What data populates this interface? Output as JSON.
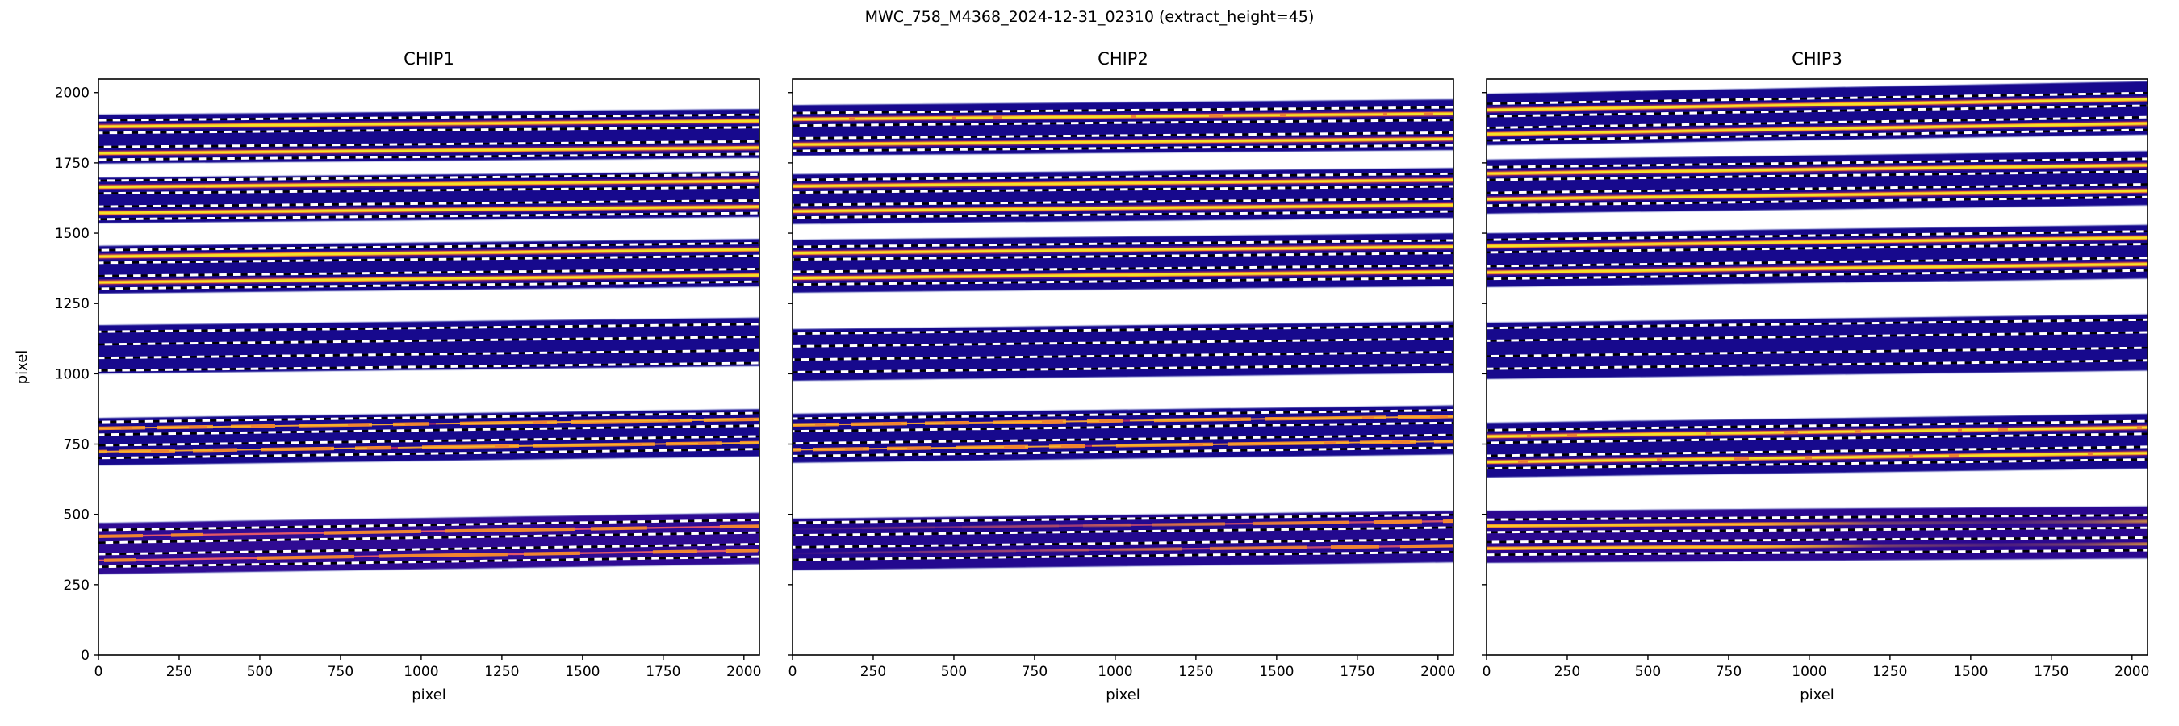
{
  "chart_data": {
    "type": "heatmap",
    "title": "MWC_758_M4368_2024-12-31_02310  (extract_height=45)",
    "extract_height": 45,
    "extraction_half_height": 22.5,
    "xlim": [
      0,
      2048
    ],
    "ylim": [
      0,
      2048
    ],
    "xticks": [
      0,
      250,
      500,
      750,
      1000,
      1250,
      1500,
      1750,
      2000
    ],
    "yticks": [
      0,
      250,
      500,
      750,
      1000,
      1250,
      1500,
      1750,
      2000
    ],
    "legend": "none",
    "grid": false,
    "style": {
      "background": "#ffffff",
      "text": "#000000",
      "frame": "#000000",
      "band_navy": "#17098d",
      "band_purple1": "#2f0b93",
      "band_purple2": "#23098f",
      "band_purple3": "#2b0890",
      "band_edge": "#9aa0d8",
      "trace_yellow": "#f3e228",
      "trace_gold": "#f6bd2c",
      "trace_orange": "#f5892e",
      "trace_crimson": "#b42a60",
      "trace_pink": "#e25768",
      "boundary_black": "#000000",
      "boundary_white": "#ffffff"
    },
    "plots": [
      {
        "title": "CHIP1",
        "xlabel": "pixel",
        "ylabel": "pixel",
        "show_ytick_labels": true,
        "bands": [
          {
            "top": [
              1922,
              1942
            ],
            "bottom": [
              1747,
              1767
            ],
            "bg": "band_navy",
            "traces": [
              {
                "y": [
                  1879,
                  1899
                ],
                "kind": "bright"
              },
              {
                "y": [
                  1784,
                  1804
                ],
                "kind": "bright"
              }
            ]
          },
          {
            "top": [
              1698,
              1720
            ],
            "bottom": [
              1535,
              1557
            ],
            "bg": "band_navy",
            "traces": [
              {
                "y": [
                  1664,
                  1686
                ],
                "kind": "bright"
              },
              {
                "y": [
                  1572,
                  1594
                ],
                "kind": "bright"
              }
            ]
          },
          {
            "top": [
              1455,
              1480
            ],
            "bottom": [
              1285,
              1310
            ],
            "bg": "band_navy",
            "traces": [
              {
                "y": [
                  1417,
                  1442
                ],
                "kind": "bright"
              },
              {
                "y": [
                  1325,
                  1350
                ],
                "kind": "bright"
              }
            ]
          },
          {
            "top": [
              1173,
              1200
            ],
            "bottom": [
              1000,
              1027
            ],
            "bg": "band_navy",
            "traces": [
              {
                "y": [
                  1127,
                  1154
                ],
                "kind": "none"
              },
              {
                "y": [
                  1034,
                  1061
                ],
                "kind": "none"
              }
            ]
          },
          {
            "top": [
              843,
              875
            ],
            "bottom": [
              674,
              706
            ],
            "bg": "band_navy",
            "traces": [
              {
                "y": [
                  806,
                  838
                ],
                "kind": "orange-seg"
              },
              {
                "y": [
                  723,
                  755
                ],
                "kind": "orange-seg"
              }
            ]
          },
          {
            "top": [
              470,
              506
            ],
            "bottom": [
              287,
              323
            ],
            "bg": "band_purple1",
            "traces": [
              {
                "y": [
                  422,
                  458
                ],
                "kind": "pink-seg"
              },
              {
                "y": [
                  336,
                  372
                ],
                "kind": "pink-seg"
              }
            ]
          }
        ]
      },
      {
        "title": "CHIP2",
        "xlabel": "pixel",
        "ylabel": "",
        "show_ytick_labels": false,
        "bands": [
          {
            "top": [
              1956,
              1976
            ],
            "bottom": [
              1775,
              1795
            ],
            "bg": "band_navy",
            "traces": [
              {
                "y": [
                  1905,
                  1925
                ],
                "kind": "bright-seg"
              },
              {
                "y": [
                  1815,
                  1835
                ],
                "kind": "bright"
              }
            ]
          },
          {
            "top": [
              1710,
              1732
            ],
            "bottom": [
              1532,
              1554
            ],
            "bg": "band_navy",
            "traces": [
              {
                "y": [
                  1667,
                  1689
                ],
                "kind": "bright"
              },
              {
                "y": [
                  1578,
                  1600
                ],
                "kind": "bright"
              }
            ]
          },
          {
            "top": [
              1477,
              1500
            ],
            "bottom": [
              1288,
              1311
            ],
            "bg": "band_navy",
            "traces": [
              {
                "y": [
                  1429,
                  1452
                ],
                "kind": "bright"
              },
              {
                "y": [
                  1340,
                  1363
                ],
                "kind": "bright"
              }
            ]
          },
          {
            "top": [
              1159,
              1186
            ],
            "bottom": [
              975,
              1002
            ],
            "bg": "band_navy",
            "traces": [
              {
                "y": [
                  1120,
                  1147
                ],
                "kind": "none"
              },
              {
                "y": [
                  1028,
                  1055
                ],
                "kind": "none"
              }
            ]
          },
          {
            "top": [
              858,
              888
            ],
            "bottom": [
              683,
              713
            ],
            "bg": "band_navy",
            "traces": [
              {
                "y": [
                  818,
                  848
                ],
                "kind": "orange-seg"
              },
              {
                "y": [
                  730,
                  760
                ],
                "kind": "orange-seg"
              }
            ]
          },
          {
            "top": [
              485,
              513
            ],
            "bottom": [
              301,
              329
            ],
            "bg": "band_purple2",
            "traces": [
              {
                "y": [
                  448,
                  476
                ],
                "kind": "pink-fade-right"
              },
              {
                "y": [
                  361,
                  389
                ],
                "kind": "pink-fade-right"
              }
            ]
          }
        ]
      },
      {
        "title": "CHIP3",
        "xlabel": "pixel",
        "ylabel": "",
        "show_ytick_labels": false,
        "bands": [
          {
            "top": [
              1996,
              2040
            ],
            "bottom": [
              1812,
              1850
            ],
            "bg": "band_navy",
            "traces": [
              {
                "y": [
                  1938,
                  1976
                ],
                "kind": "bright"
              },
              {
                "y": [
                  1852,
                  1890
                ],
                "kind": "bright"
              }
            ]
          },
          {
            "top": [
              1762,
              1792
            ],
            "bottom": [
              1569,
              1599
            ],
            "bg": "band_navy",
            "traces": [
              {
                "y": [
                  1712,
                  1742
                ],
                "kind": "bright"
              },
              {
                "y": [
                  1621,
                  1651
                ],
                "kind": "bright"
              }
            ]
          },
          {
            "top": [
              1500,
              1530
            ],
            "bottom": [
              1308,
              1338
            ],
            "bg": "band_navy",
            "traces": [
              {
                "y": [
                  1454,
                  1484
                ],
                "kind": "bright"
              },
              {
                "y": [
                  1360,
                  1390
                ],
                "kind": "bright"
              }
            ]
          },
          {
            "top": [
              1182,
              1212
            ],
            "bottom": [
              981,
              1011
            ],
            "bg": "band_navy",
            "traces": [
              {
                "y": [
                  1140,
                  1170
                ],
                "kind": "none"
              },
              {
                "y": [
                  1040,
                  1070
                ],
                "kind": "none"
              }
            ]
          },
          {
            "top": [
              826,
              858
            ],
            "bottom": [
              631,
              663
            ],
            "bg": "band_navy",
            "traces": [
              {
                "y": [
                  777,
                  809
                ],
                "kind": "bright-seg"
              },
              {
                "y": [
                  686,
                  718
                ],
                "kind": "bright-seg"
              }
            ]
          },
          {
            "top": [
              513,
              529
            ],
            "bottom": [
              327,
              343
            ],
            "bg": "band_purple3",
            "traces": [
              {
                "y": [
                  459,
                  475
                ],
                "kind": "orange-fade"
              },
              {
                "y": [
                  379,
                  395
                ],
                "kind": "orange-fade"
              }
            ]
          }
        ]
      }
    ]
  }
}
